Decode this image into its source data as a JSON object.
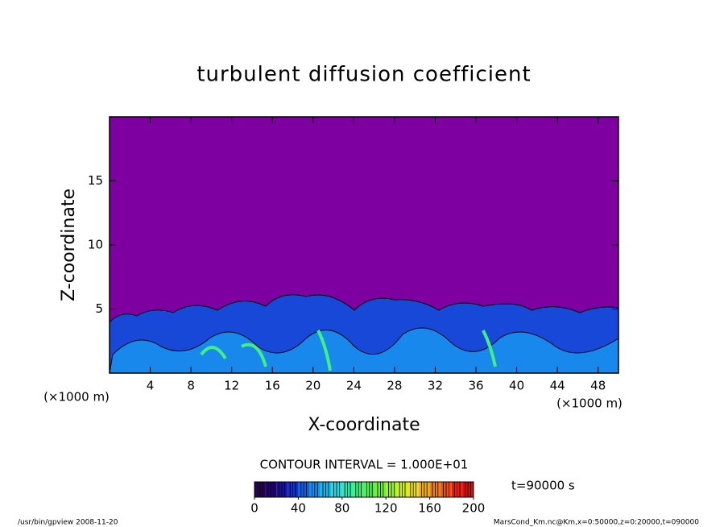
{
  "chart_data": {
    "type": "contour",
    "title": "turbulent diffusion coefficient",
    "x_label": "X-coordinate",
    "y_label": "Z-coordinate",
    "x_unit": "(×1000 m)",
    "y_unit": "(×1000 m)",
    "xlim": [
      0,
      50
    ],
    "xticks": [
      4,
      8,
      12,
      16,
      20,
      24,
      28,
      32,
      36,
      40,
      44,
      48
    ],
    "ylim": [
      0,
      20
    ],
    "yticks": [
      5,
      10,
      15
    ],
    "background_color": "#7f00a0",
    "contour_interval": "CONTOUR INTERVAL = 1.000E+01",
    "time": "t=90000 s",
    "colorbar": {
      "lim": [
        0,
        200
      ],
      "ticks": [
        0,
        40,
        80,
        120,
        160,
        200
      ],
      "colors": [
        "#2a0050",
        "#22007a",
        "#1a10a0",
        "#1030c8",
        "#1060e0",
        "#1090f0",
        "#10b8f0",
        "#20d8e0",
        "#30e8b0",
        "#40f080",
        "#50f050",
        "#70f030",
        "#a0f020",
        "#d0f010",
        "#f0e010",
        "#f0b010",
        "#f08010",
        "#f05010",
        "#e82010",
        "#d01010"
      ]
    },
    "footer_left": "/usr/bin/gpview  2008-11-20",
    "footer_right": "MarsCond_Km.nc@Km,x=0:50000,z=0:20000,t=090000"
  }
}
